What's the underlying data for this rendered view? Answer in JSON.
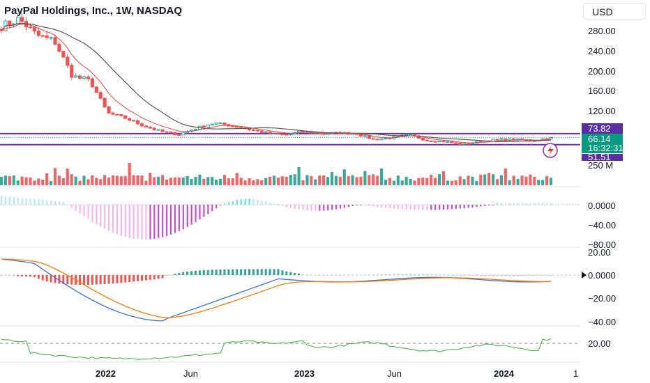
{
  "header": {
    "title": "PayPal Holdings, Inc., 1W, NASDAQ",
    "currency": "USD"
  },
  "colors": {
    "up": "#26a69a",
    "down": "#ef5350",
    "upVol": "#3aa89b",
    "downVol": "#ee6666",
    "sma": "#555555",
    "ema": "#e84040",
    "levels": "#6a2fb0",
    "histPosStrong": "#5ee3e3",
    "histPosWeak": "#b2ebf2",
    "histNegStrong": "#c44ec7",
    "histNegWeak": "#f5b6f0",
    "macdLine": "#3b6fd6",
    "signalLine": "#f57c00",
    "rsiLine": "#4caf50"
  },
  "price_axis": {
    "ticks": [
      "280.00",
      "240.00",
      "200.00",
      "160.00",
      "120.00"
    ]
  },
  "price_badges": {
    "upper_level": "73.82",
    "last_price": "66.14",
    "countdown": "16:32:31",
    "lower_level": "51.51"
  },
  "volume_axis": {
    "label": "250 M"
  },
  "osc1_axis": {
    "ticks": [
      "0.0000",
      "−40.00",
      "−80.00"
    ]
  },
  "macd_axis": {
    "ticks": [
      "20.00",
      "0.0000",
      "−20.00",
      "−40.00"
    ]
  },
  "rsi_axis": {
    "ticks": [
      "20.00"
    ]
  },
  "time_axis": {
    "labels": [
      "2022",
      "Jun",
      "2023",
      "Jun",
      "2024",
      "1"
    ]
  },
  "chart_data": [
    {
      "type": "candlestick",
      "title": "PayPal Holdings, Inc., 1W, NASDAQ",
      "x_range": [
        "2021-08",
        "2024-03"
      ],
      "ylim": [
        50,
        310
      ],
      "upper_level": 73.82,
      "lower_level": 51.51,
      "last": 66.14,
      "close_path": [
        {
          "x": "2021-08",
          "y": 290
        },
        {
          "x": "2021-09",
          "y": 305
        },
        {
          "x": "2021-10",
          "y": 272
        },
        {
          "x": "2021-11",
          "y": 260
        },
        {
          "x": "2021-12",
          "y": 190
        },
        {
          "x": "2022-01",
          "y": 180
        },
        {
          "x": "2022-02",
          "y": 115
        },
        {
          "x": "2022-03",
          "y": 105
        },
        {
          "x": "2022-04",
          "y": 90
        },
        {
          "x": "2022-05",
          "y": 78
        },
        {
          "x": "2022-06",
          "y": 72
        },
        {
          "x": "2022-07",
          "y": 85
        },
        {
          "x": "2022-08",
          "y": 95
        },
        {
          "x": "2022-09",
          "y": 90
        },
        {
          "x": "2022-10",
          "y": 82
        },
        {
          "x": "2022-11",
          "y": 75
        },
        {
          "x": "2022-12",
          "y": 71
        },
        {
          "x": "2023-01",
          "y": 78
        },
        {
          "x": "2023-02",
          "y": 74
        },
        {
          "x": "2023-03",
          "y": 75
        },
        {
          "x": "2023-04",
          "y": 74
        },
        {
          "x": "2023-05",
          "y": 62
        },
        {
          "x": "2023-06",
          "y": 65
        },
        {
          "x": "2023-07",
          "y": 72
        },
        {
          "x": "2023-08",
          "y": 60
        },
        {
          "x": "2023-09",
          "y": 58
        },
        {
          "x": "2023-10",
          "y": 52
        },
        {
          "x": "2023-11",
          "y": 58
        },
        {
          "x": "2023-12",
          "y": 62
        },
        {
          "x": "2024-01",
          "y": 62
        },
        {
          "x": "2024-02",
          "y": 60
        },
        {
          "x": "2024-03",
          "y": 66.14
        }
      ]
    },
    {
      "type": "bar",
      "name": "volume",
      "ylabel": "250 M"
    },
    {
      "type": "bar",
      "name": "oscillator",
      "ylim": [
        -90,
        20
      ]
    },
    {
      "type": "line",
      "name": "macd",
      "ylim": [
        -45,
        22
      ]
    },
    {
      "type": "line",
      "name": "rsi-like",
      "reference": 20
    }
  ]
}
